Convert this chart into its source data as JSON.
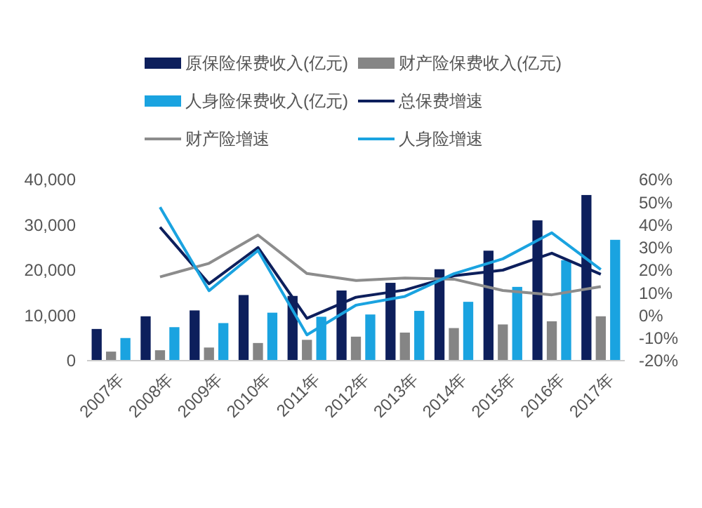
{
  "chart_data": {
    "type": "bar",
    "categories": [
      "2007年",
      "2008年",
      "2009年",
      "2010年",
      "2011年",
      "2012年",
      "2013年",
      "2014年",
      "2015年",
      "2016年",
      "2017年"
    ],
    "series": [
      {
        "name": "原保险保费收入(亿元)",
        "color": "#0d1f5c",
        "values": [
          7000,
          9800,
          11100,
          14500,
          14300,
          15500,
          17200,
          20200,
          24300,
          31000,
          36600
        ]
      },
      {
        "name": "财产险保费收入(亿元)",
        "color": "#858585",
        "values": [
          2000,
          2300,
          2900,
          3900,
          4600,
          5300,
          6200,
          7200,
          8000,
          8700,
          9800
        ]
      },
      {
        "name": "人身险保费收入(亿元)",
        "color": "#1aa3e0",
        "values": [
          5000,
          7400,
          8300,
          10600,
          9700,
          10200,
          11000,
          13000,
          16300,
          22200,
          26700
        ]
      },
      {
        "name": "总保费增速",
        "type": "line",
        "axis": "y2",
        "color": "#0d1f5c",
        "values": [
          null,
          39,
          14,
          30,
          -1.3,
          8,
          11.2,
          17.5,
          20,
          27.5,
          18.2
        ]
      },
      {
        "name": "财产险增速",
        "type": "line",
        "axis": "y2",
        "color": "#8c8c8c",
        "values": [
          null,
          17,
          23,
          35.5,
          18.5,
          15.4,
          16.5,
          16,
          11,
          9.1,
          12.7
        ]
      },
      {
        "name": "人身险增速",
        "type": "line",
        "axis": "y2",
        "color": "#1aa3e0",
        "values": [
          null,
          47.8,
          10.9,
          28.7,
          -8.6,
          4.5,
          8.4,
          18.4,
          25,
          36.5,
          20.3
        ]
      }
    ],
    "ylim": [
      0,
      40000
    ],
    "yticks": [
      {
        "value": 0,
        "label": "0"
      },
      {
        "value": 10000,
        "label": "10,000"
      },
      {
        "value": 20000,
        "label": "20,000"
      },
      {
        "value": 30000,
        "label": "30,000"
      },
      {
        "value": 40000,
        "label": "40,000"
      }
    ],
    "y2lim": [
      -20,
      60
    ],
    "y2ticks": [
      {
        "value": -20,
        "label": "-20%"
      },
      {
        "value": -10,
        "label": "-10%"
      },
      {
        "value": 0,
        "label": "0%"
      },
      {
        "value": 10,
        "label": "10%"
      },
      {
        "value": 20,
        "label": "20%"
      },
      {
        "value": 30,
        "label": "30%"
      },
      {
        "value": 40,
        "label": "40%"
      },
      {
        "value": 50,
        "label": "50%"
      },
      {
        "value": 60,
        "label": "60%"
      }
    ],
    "legend": "top",
    "grid": false
  }
}
